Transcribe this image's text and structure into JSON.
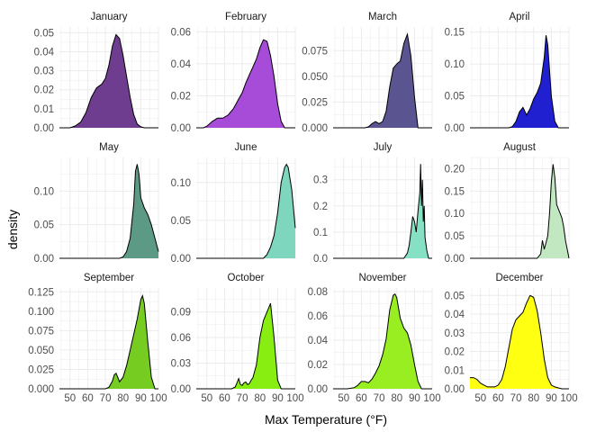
{
  "chart_data": {
    "type": "area",
    "xlabel": "Max Temperature (°F)",
    "ylabel": "density",
    "xlim": [
      44,
      100
    ],
    "x_ticks": [
      50,
      60,
      70,
      80,
      90,
      100
    ],
    "grid": true,
    "facets": [
      {
        "name": "January",
        "color": "#6f3d8f",
        "ylim": [
          0,
          0.053
        ],
        "y_ticks": [
          "0.00",
          "0.01",
          "0.02",
          "0.03",
          "0.04",
          "0.05"
        ],
        "y_tick_values": [
          0,
          0.01,
          0.02,
          0.03,
          0.04,
          0.05
        ],
        "x": [
          44,
          50,
          53,
          56,
          59,
          62,
          65,
          68,
          70,
          72,
          74,
          76,
          78,
          80,
          82,
          84,
          86,
          88,
          90,
          92,
          100
        ],
        "y": [
          0,
          0,
          0.001,
          0.003,
          0.008,
          0.016,
          0.021,
          0.023,
          0.026,
          0.033,
          0.043,
          0.049,
          0.047,
          0.038,
          0.027,
          0.016,
          0.007,
          0.002,
          0.0005,
          0,
          0
        ]
      },
      {
        "name": "February",
        "color": "#a64cd8",
        "ylim": [
          0,
          0.063
        ],
        "y_ticks": [
          "0.00",
          "0.02",
          "0.04",
          "0.06"
        ],
        "y_tick_values": [
          0,
          0.02,
          0.04,
          0.06
        ],
        "x": [
          44,
          48,
          50,
          53,
          56,
          59,
          62,
          65,
          68,
          70,
          72,
          74,
          76,
          78,
          80,
          82,
          84,
          86,
          88,
          90,
          92,
          94,
          100
        ],
        "y": [
          0,
          0,
          0.001,
          0.004,
          0.006,
          0.006,
          0.008,
          0.012,
          0.018,
          0.022,
          0.028,
          0.033,
          0.038,
          0.043,
          0.05,
          0.055,
          0.054,
          0.045,
          0.032,
          0.015,
          0.004,
          0,
          0
        ]
      },
      {
        "name": "March",
        "color": "#5a5590",
        "ylim": [
          0,
          0.098
        ],
        "y_ticks": [
          "0.000",
          "0.025",
          "0.050",
          "0.075"
        ],
        "y_tick_values": [
          0,
          0.025,
          0.05,
          0.075
        ],
        "x": [
          44,
          62,
          64,
          66,
          68,
          70,
          72,
          74,
          76,
          78,
          80,
          82,
          84,
          86,
          88,
          90,
          92,
          100
        ],
        "y": [
          0,
          0,
          0.001,
          0.004,
          0.006,
          0.004,
          0.006,
          0.016,
          0.04,
          0.058,
          0.062,
          0.065,
          0.082,
          0.091,
          0.07,
          0.03,
          0,
          0
        ]
      },
      {
        "name": "April",
        "color": "#2020d0",
        "ylim": [
          0,
          0.158
        ],
        "y_ticks": [
          "0.00",
          "0.05",
          "0.10",
          "0.15"
        ],
        "y_tick_values": [
          0,
          0.05,
          0.1,
          0.15
        ],
        "x": [
          44,
          66,
          68,
          70,
          72,
          74,
          76,
          78,
          80,
          82,
          84,
          86,
          87,
          88,
          90,
          92,
          94,
          100
        ],
        "y": [
          0,
          0,
          0.002,
          0.01,
          0.025,
          0.032,
          0.02,
          0.03,
          0.045,
          0.055,
          0.07,
          0.11,
          0.145,
          0.13,
          0.05,
          0.01,
          0,
          0
        ]
      },
      {
        "name": "May",
        "color": "#5c9a85",
        "ylim": [
          0,
          0.15
        ],
        "y_ticks": [
          "0.00",
          "0.05",
          "0.10"
        ],
        "y_tick_values": [
          0,
          0.05,
          0.1
        ],
        "x": [
          44,
          78,
          80,
          82,
          84,
          86,
          87,
          88,
          89,
          90,
          92,
          94,
          96,
          98,
          100
        ],
        "y": [
          0,
          0,
          0.002,
          0.01,
          0.03,
          0.08,
          0.13,
          0.14,
          0.125,
          0.09,
          0.075,
          0.065,
          0.05,
          0.03,
          0.01
        ]
      },
      {
        "name": "June",
        "color": "#7dd6bd",
        "ylim": [
          0,
          0.133
        ],
        "y_ticks": [
          "0.00",
          "0.05",
          "0.10"
        ],
        "y_tick_values": [
          0,
          0.05,
          0.1
        ],
        "x": [
          44,
          82,
          84,
          86,
          88,
          90,
          92,
          94,
          95,
          96,
          98,
          100
        ],
        "y": [
          0,
          0,
          0.005,
          0.015,
          0.03,
          0.06,
          0.1,
          0.12,
          0.124,
          0.12,
          0.09,
          0.04
        ]
      },
      {
        "name": "July",
        "color": "#85e0c4",
        "ylim": [
          0,
          0.385
        ],
        "y_ticks": [
          "0.0",
          "0.1",
          "0.2",
          "0.3"
        ],
        "y_tick_values": [
          0,
          0.1,
          0.2,
          0.3
        ],
        "x": [
          44,
          84,
          86,
          87,
          88,
          89,
          90,
          91,
          92,
          93,
          93.5,
          94,
          94.5,
          95,
          95.5,
          96,
          97,
          98,
          100
        ],
        "y": [
          0,
          0,
          0.02,
          0.05,
          0.1,
          0.16,
          0.14,
          0.1,
          0.18,
          0.25,
          0.36,
          0.2,
          0.3,
          0.14,
          0.2,
          0.08,
          0.03,
          0,
          0
        ]
      },
      {
        "name": "August",
        "color": "#c2e8c2",
        "ylim": [
          0,
          0.225
        ],
        "y_ticks": [
          "0.00",
          "0.05",
          "0.10",
          "0.15",
          "0.20"
        ],
        "y_tick_values": [
          0,
          0.05,
          0.1,
          0.15,
          0.2
        ],
        "x": [
          44,
          82,
          84,
          85,
          86,
          87,
          88,
          89,
          90,
          91,
          92,
          93,
          94,
          95,
          96,
          97,
          98,
          100
        ],
        "y": [
          0,
          0,
          0.01,
          0.04,
          0.02,
          0.035,
          0.05,
          0.1,
          0.17,
          0.21,
          0.18,
          0.12,
          0.11,
          0.1,
          0.09,
          0.07,
          0.04,
          0
        ]
      },
      {
        "name": "September",
        "color": "#77cc22",
        "ylim": [
          0,
          0.13
        ],
        "y_ticks": [
          "0.000",
          "0.025",
          "0.050",
          "0.075",
          "0.100",
          "0.125"
        ],
        "y_tick_values": [
          0,
          0.025,
          0.05,
          0.075,
          0.1,
          0.125
        ],
        "x": [
          44,
          70,
          72,
          74,
          75,
          76,
          77,
          78,
          80,
          82,
          84,
          86,
          88,
          90,
          91,
          92,
          94,
          96,
          98,
          100
        ],
        "y": [
          0,
          0,
          0.002,
          0.01,
          0.018,
          0.02,
          0.015,
          0.009,
          0.015,
          0.03,
          0.05,
          0.07,
          0.09,
          0.115,
          0.12,
          0.11,
          0.06,
          0.015,
          0,
          0
        ]
      },
      {
        "name": "October",
        "color": "#88ee11",
        "ylim": [
          0,
          0.118
        ],
        "y_ticks": [
          "0.00",
          "0.03",
          "0.06",
          "0.09"
        ],
        "y_tick_values": [
          0,
          0.03,
          0.06,
          0.09
        ],
        "x": [
          44,
          64,
          66,
          67,
          68,
          69,
          70,
          71,
          72,
          73,
          74,
          75,
          76,
          78,
          80,
          82,
          84,
          86,
          88,
          90,
          92,
          100
        ],
        "y": [
          0,
          0,
          0.002,
          0.007,
          0.012,
          0.005,
          0.004,
          0.007,
          0.008,
          0.005,
          0.006,
          0.01,
          0.013,
          0.028,
          0.06,
          0.08,
          0.09,
          0.1,
          0.06,
          0.01,
          0,
          0
        ]
      },
      {
        "name": "November",
        "color": "#99ee22",
        "ylim": [
          0,
          0.083
        ],
        "y_ticks": [
          "0.00",
          "0.02",
          "0.04",
          "0.06",
          "0.08"
        ],
        "y_tick_values": [
          0,
          0.02,
          0.04,
          0.06,
          0.08
        ],
        "x": [
          44,
          52,
          56,
          58,
          60,
          62,
          64,
          66,
          68,
          70,
          72,
          74,
          76,
          78,
          79,
          80,
          82,
          84,
          86,
          88,
          90,
          92,
          94,
          100
        ],
        "y": [
          0,
          0,
          0.001,
          0.003,
          0.006,
          0.006,
          0.005,
          0.008,
          0.013,
          0.019,
          0.028,
          0.041,
          0.065,
          0.077,
          0.078,
          0.075,
          0.058,
          0.05,
          0.046,
          0.036,
          0.02,
          0.006,
          0,
          0
        ]
      },
      {
        "name": "December",
        "color": "#ffff11",
        "ylim": [
          0,
          0.054
        ],
        "y_ticks": [
          "0.00",
          "0.01",
          "0.02",
          "0.03",
          "0.04",
          "0.05"
        ],
        "y_tick_values": [
          0,
          0.01,
          0.02,
          0.03,
          0.04,
          0.05
        ],
        "x": [
          44,
          46,
          48,
          50,
          52,
          54,
          56,
          58,
          60,
          62,
          64,
          66,
          68,
          70,
          72,
          74,
          76,
          78,
          80,
          82,
          84,
          86,
          88,
          90,
          92,
          94,
          96,
          98,
          100
        ],
        "y": [
          0.006,
          0.006,
          0.005,
          0.003,
          0.002,
          0.001,
          0.001,
          0.001,
          0.002,
          0.005,
          0.012,
          0.022,
          0.032,
          0.037,
          0.039,
          0.041,
          0.046,
          0.05,
          0.049,
          0.042,
          0.03,
          0.016,
          0.006,
          0.002,
          0.001,
          0.0005,
          0,
          0,
          0
        ]
      }
    ]
  }
}
